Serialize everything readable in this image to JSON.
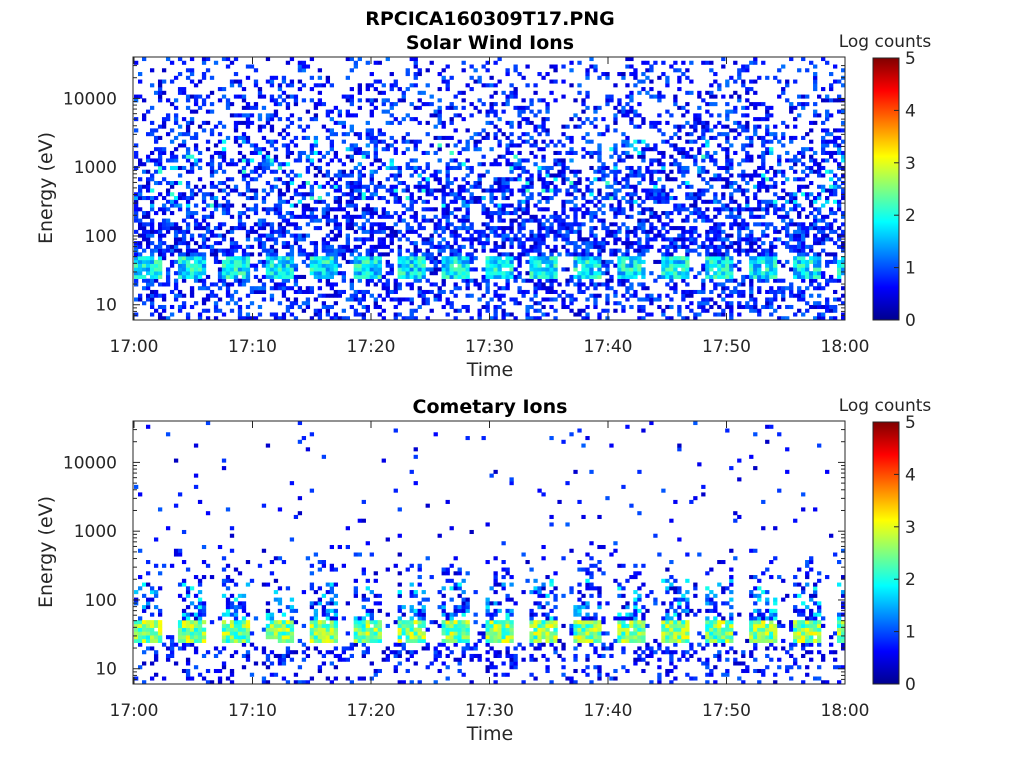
{
  "figure_title": "RPCICA160309T17.PNG",
  "chart_data": [
    {
      "type": "heatmap",
      "title": "Solar Wind Ions",
      "xlabel": "Time",
      "ylabel": "Energy (eV)",
      "x_ticks": [
        "17:00",
        "17:10",
        "17:20",
        "17:30",
        "17:40",
        "17:50",
        "18:00"
      ],
      "x_range": [
        "17:00",
        "18:00"
      ],
      "y_scale": "log",
      "y_ticks": [
        10,
        100,
        1000,
        10000
      ],
      "y_tick_labels": [
        "10",
        "100",
        "1000",
        "10000"
      ],
      "y_range": [
        6,
        40000
      ],
      "colorbar": {
        "label": "Log counts",
        "range": [
          0,
          5
        ],
        "ticks": [
          "0",
          "1",
          "2",
          "3",
          "4",
          "5"
        ],
        "colormap": "jet"
      },
      "grid": false
    },
    {
      "type": "heatmap",
      "title": "Cometary Ions",
      "xlabel": "Time",
      "ylabel": "Energy (eV)",
      "x_ticks": [
        "17:00",
        "17:10",
        "17:20",
        "17:30",
        "17:40",
        "17:50",
        "18:00"
      ],
      "x_range": [
        "17:00",
        "18:00"
      ],
      "y_scale": "log",
      "y_ticks": [
        10,
        100,
        1000,
        10000
      ],
      "y_tick_labels": [
        "10",
        "100",
        "1000",
        "10000"
      ],
      "y_range": [
        6,
        40000
      ],
      "colorbar": {
        "label": "Log counts",
        "range": [
          0,
          5
        ],
        "ticks": [
          "0",
          "1",
          "2",
          "3",
          "4",
          "5"
        ],
        "colormap": "jet"
      },
      "grid": false
    }
  ]
}
